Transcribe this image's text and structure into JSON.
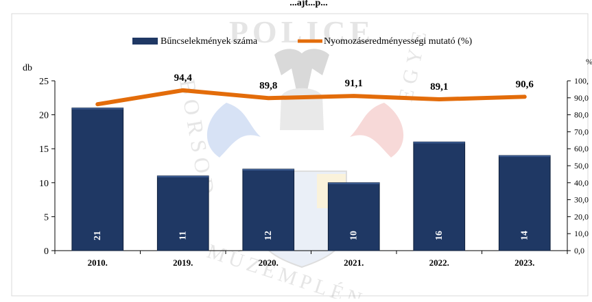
{
  "chart_data": {
    "type": "bar+line",
    "title": "...ajt...p...",
    "categories": [
      "2010.",
      "2019.",
      "2020.",
      "2021.",
      "2022.",
      "2023."
    ],
    "series": [
      {
        "name": "Bűncselekmények száma",
        "type": "bar",
        "axis": "left",
        "values": [
          21,
          11,
          12,
          10,
          16,
          14
        ],
        "color": "#1F3864"
      },
      {
        "name": "Nyomozáseredményességi mutató (%)",
        "type": "line",
        "axis": "right",
        "values": [
          86.2,
          94.4,
          89.8,
          91.1,
          89.1,
          90.6
        ],
        "labels": [
          "",
          "94,4",
          "89,8",
          "91,1",
          "89,1",
          "90,6"
        ],
        "color": "#E36C0A"
      }
    ],
    "y_left": {
      "label": "db",
      "range": [
        0,
        25
      ],
      "ticks": [
        "0",
        "5",
        "10",
        "15",
        "20",
        "25"
      ]
    },
    "y_right": {
      "label": "%",
      "range": [
        0,
        100
      ],
      "ticks": [
        "0,0",
        "10,0",
        "20,0",
        "30,0",
        "40,0",
        "50,0",
        "60,0",
        "70,0",
        "80,0",
        "90,0",
        "100,"
      ]
    },
    "legend_position": "top-center",
    "grid": false
  },
  "watermark": {
    "text_top": "POLICE",
    "text_left": "BORSOD",
    "text_bottom": "MÚZEMPLÉN",
    "text_right": "EGYE"
  }
}
